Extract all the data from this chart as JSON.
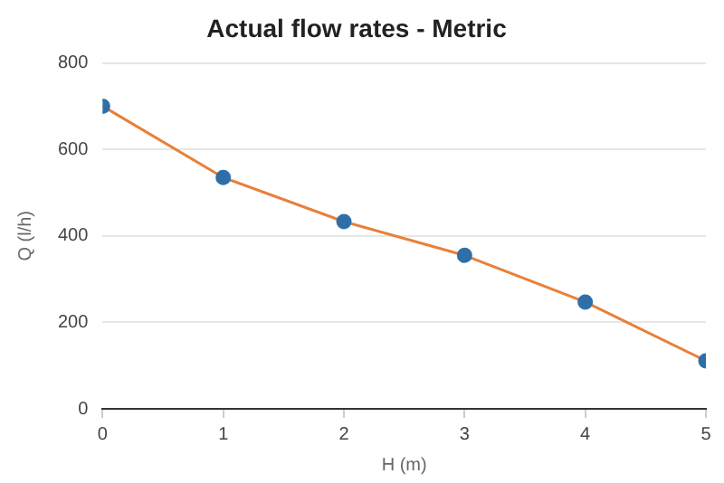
{
  "chart_data": {
    "type": "line",
    "title": "Actual flow rates - Metric",
    "xlabel": "H (m)",
    "ylabel": "Q (l/h)",
    "x": [
      0,
      1,
      2,
      3,
      4,
      5
    ],
    "series": [
      {
        "color": "#e8803a",
        "colors": [
          "#2f6fa8",
          "#2f6fa8",
          "#2f6fa8",
          "#2f6fa8",
          "#2f6fa8",
          "#2f6fa8"
        ],
        "values": [
          700,
          535,
          433,
          355,
          247,
          111
        ]
      }
    ],
    "xlim": [
      0,
      5
    ],
    "xticks": [
      0,
      1,
      2,
      3,
      4,
      5
    ],
    "ylim": [
      0,
      800
    ],
    "yticks": [
      0,
      200,
      400,
      600,
      800
    ],
    "grid": "y",
    "legend": false,
    "marker": "circle",
    "line_style": "solid"
  }
}
